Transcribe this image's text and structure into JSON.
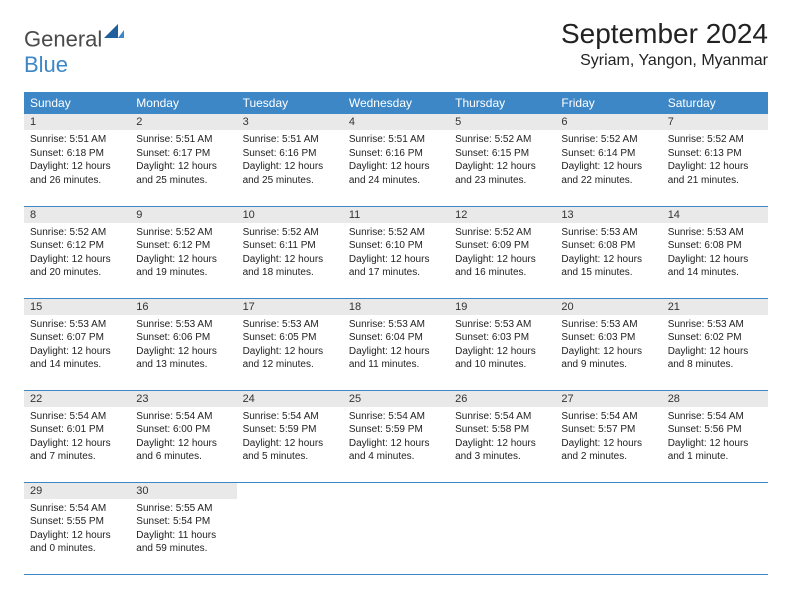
{
  "brand": {
    "general": "General",
    "blue": "Blue"
  },
  "header": {
    "month_title": "September 2024",
    "location": "Syriam, Yangon, Myanmar"
  },
  "calendar": {
    "day_headers": [
      "Sunday",
      "Monday",
      "Tuesday",
      "Wednesday",
      "Thursday",
      "Friday",
      "Saturday"
    ],
    "header_bg": "#3d87c7",
    "header_fg": "#ffffff",
    "daynum_bg": "#e9e9e9",
    "border_color": "#3d87c7",
    "body_fontsize": 10,
    "header_fontsize": 12,
    "days": [
      {
        "n": "1",
        "sunrise": "Sunrise: 5:51 AM",
        "sunset": "Sunset: 6:18 PM",
        "daylight": "Daylight: 12 hours and 26 minutes."
      },
      {
        "n": "2",
        "sunrise": "Sunrise: 5:51 AM",
        "sunset": "Sunset: 6:17 PM",
        "daylight": "Daylight: 12 hours and 25 minutes."
      },
      {
        "n": "3",
        "sunrise": "Sunrise: 5:51 AM",
        "sunset": "Sunset: 6:16 PM",
        "daylight": "Daylight: 12 hours and 25 minutes."
      },
      {
        "n": "4",
        "sunrise": "Sunrise: 5:51 AM",
        "sunset": "Sunset: 6:16 PM",
        "daylight": "Daylight: 12 hours and 24 minutes."
      },
      {
        "n": "5",
        "sunrise": "Sunrise: 5:52 AM",
        "sunset": "Sunset: 6:15 PM",
        "daylight": "Daylight: 12 hours and 23 minutes."
      },
      {
        "n": "6",
        "sunrise": "Sunrise: 5:52 AM",
        "sunset": "Sunset: 6:14 PM",
        "daylight": "Daylight: 12 hours and 22 minutes."
      },
      {
        "n": "7",
        "sunrise": "Sunrise: 5:52 AM",
        "sunset": "Sunset: 6:13 PM",
        "daylight": "Daylight: 12 hours and 21 minutes."
      },
      {
        "n": "8",
        "sunrise": "Sunrise: 5:52 AM",
        "sunset": "Sunset: 6:12 PM",
        "daylight": "Daylight: 12 hours and 20 minutes."
      },
      {
        "n": "9",
        "sunrise": "Sunrise: 5:52 AM",
        "sunset": "Sunset: 6:12 PM",
        "daylight": "Daylight: 12 hours and 19 minutes."
      },
      {
        "n": "10",
        "sunrise": "Sunrise: 5:52 AM",
        "sunset": "Sunset: 6:11 PM",
        "daylight": "Daylight: 12 hours and 18 minutes."
      },
      {
        "n": "11",
        "sunrise": "Sunrise: 5:52 AM",
        "sunset": "Sunset: 6:10 PM",
        "daylight": "Daylight: 12 hours and 17 minutes."
      },
      {
        "n": "12",
        "sunrise": "Sunrise: 5:52 AM",
        "sunset": "Sunset: 6:09 PM",
        "daylight": "Daylight: 12 hours and 16 minutes."
      },
      {
        "n": "13",
        "sunrise": "Sunrise: 5:53 AM",
        "sunset": "Sunset: 6:08 PM",
        "daylight": "Daylight: 12 hours and 15 minutes."
      },
      {
        "n": "14",
        "sunrise": "Sunrise: 5:53 AM",
        "sunset": "Sunset: 6:08 PM",
        "daylight": "Daylight: 12 hours and 14 minutes."
      },
      {
        "n": "15",
        "sunrise": "Sunrise: 5:53 AM",
        "sunset": "Sunset: 6:07 PM",
        "daylight": "Daylight: 12 hours and 14 minutes."
      },
      {
        "n": "16",
        "sunrise": "Sunrise: 5:53 AM",
        "sunset": "Sunset: 6:06 PM",
        "daylight": "Daylight: 12 hours and 13 minutes."
      },
      {
        "n": "17",
        "sunrise": "Sunrise: 5:53 AM",
        "sunset": "Sunset: 6:05 PM",
        "daylight": "Daylight: 12 hours and 12 minutes."
      },
      {
        "n": "18",
        "sunrise": "Sunrise: 5:53 AM",
        "sunset": "Sunset: 6:04 PM",
        "daylight": "Daylight: 12 hours and 11 minutes."
      },
      {
        "n": "19",
        "sunrise": "Sunrise: 5:53 AM",
        "sunset": "Sunset: 6:03 PM",
        "daylight": "Daylight: 12 hours and 10 minutes."
      },
      {
        "n": "20",
        "sunrise": "Sunrise: 5:53 AM",
        "sunset": "Sunset: 6:03 PM",
        "daylight": "Daylight: 12 hours and 9 minutes."
      },
      {
        "n": "21",
        "sunrise": "Sunrise: 5:53 AM",
        "sunset": "Sunset: 6:02 PM",
        "daylight": "Daylight: 12 hours and 8 minutes."
      },
      {
        "n": "22",
        "sunrise": "Sunrise: 5:54 AM",
        "sunset": "Sunset: 6:01 PM",
        "daylight": "Daylight: 12 hours and 7 minutes."
      },
      {
        "n": "23",
        "sunrise": "Sunrise: 5:54 AM",
        "sunset": "Sunset: 6:00 PM",
        "daylight": "Daylight: 12 hours and 6 minutes."
      },
      {
        "n": "24",
        "sunrise": "Sunrise: 5:54 AM",
        "sunset": "Sunset: 5:59 PM",
        "daylight": "Daylight: 12 hours and 5 minutes."
      },
      {
        "n": "25",
        "sunrise": "Sunrise: 5:54 AM",
        "sunset": "Sunset: 5:59 PM",
        "daylight": "Daylight: 12 hours and 4 minutes."
      },
      {
        "n": "26",
        "sunrise": "Sunrise: 5:54 AM",
        "sunset": "Sunset: 5:58 PM",
        "daylight": "Daylight: 12 hours and 3 minutes."
      },
      {
        "n": "27",
        "sunrise": "Sunrise: 5:54 AM",
        "sunset": "Sunset: 5:57 PM",
        "daylight": "Daylight: 12 hours and 2 minutes."
      },
      {
        "n": "28",
        "sunrise": "Sunrise: 5:54 AM",
        "sunset": "Sunset: 5:56 PM",
        "daylight": "Daylight: 12 hours and 1 minute."
      },
      {
        "n": "29",
        "sunrise": "Sunrise: 5:54 AM",
        "sunset": "Sunset: 5:55 PM",
        "daylight": "Daylight: 12 hours and 0 minutes."
      },
      {
        "n": "30",
        "sunrise": "Sunrise: 5:55 AM",
        "sunset": "Sunset: 5:54 PM",
        "daylight": "Daylight: 11 hours and 59 minutes."
      }
    ]
  }
}
